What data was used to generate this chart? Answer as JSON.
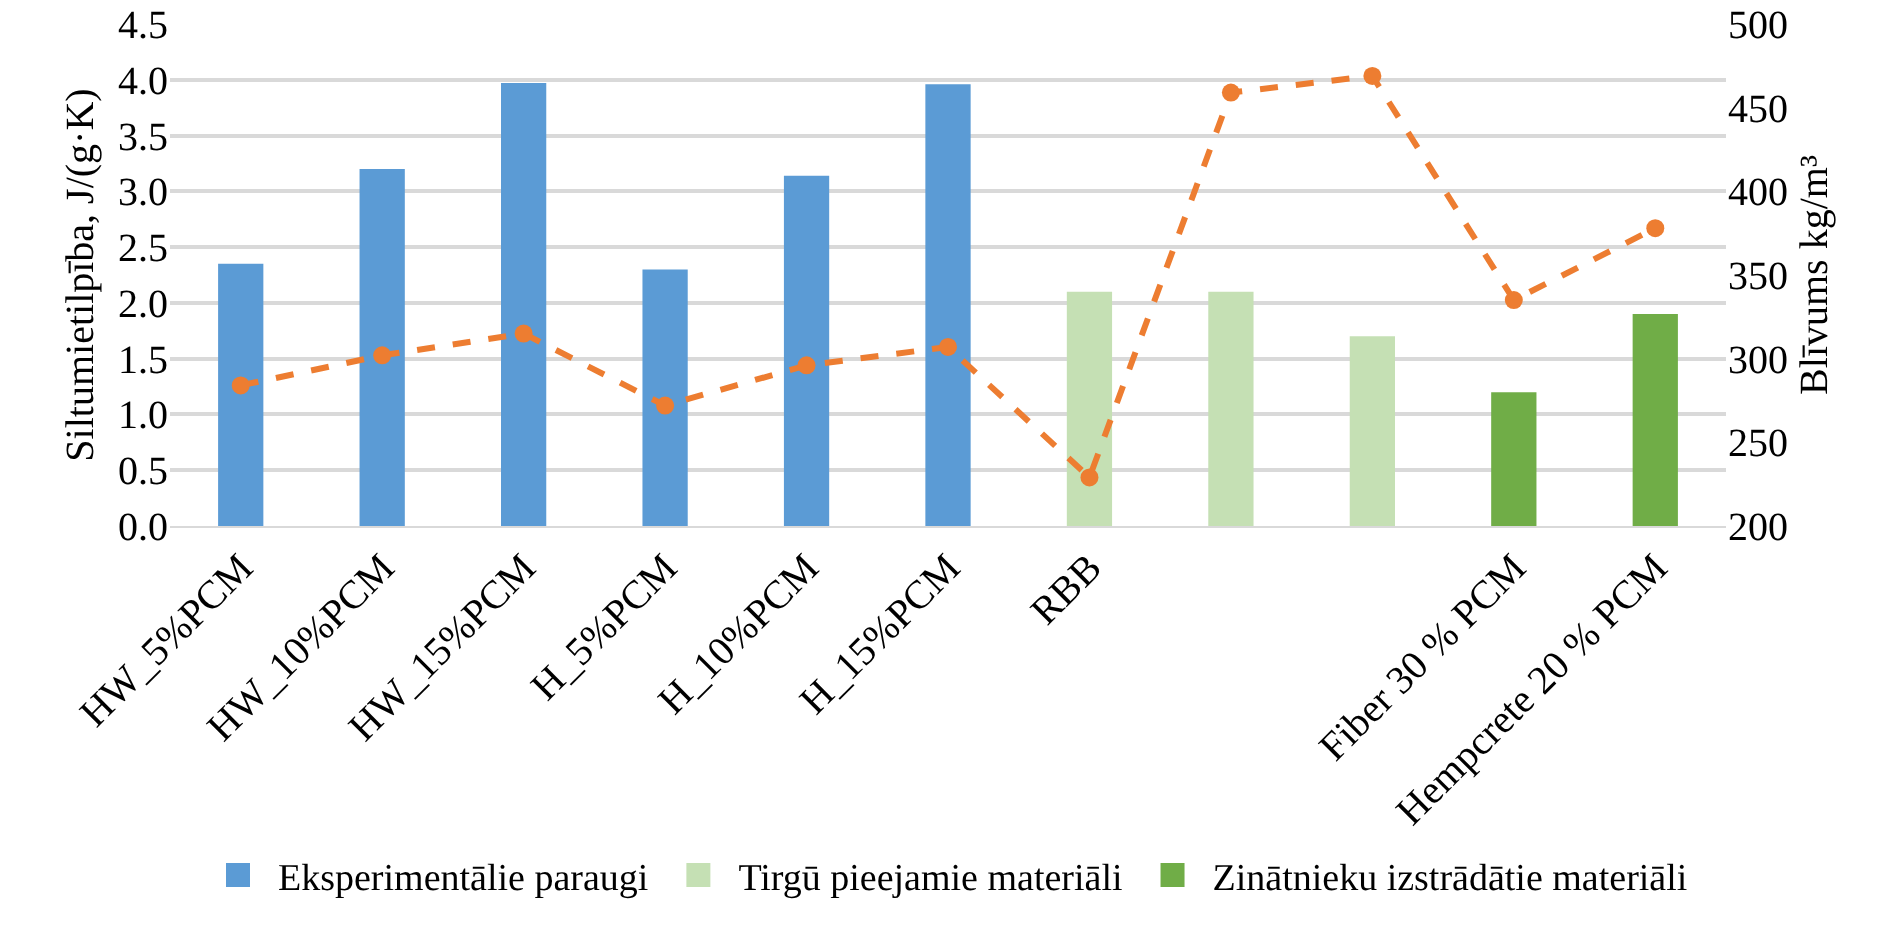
{
  "chart_data": {
    "type": "bar",
    "ylabel": "Siltumietilpība, J/(g·K)",
    "y2label": "Blīvums kg/m³",
    "categories": [
      "HW_5%PCM",
      "HW_10%PCM",
      "HW_15%PCM",
      "H_5%PCM",
      "H_10%PCM",
      "H_15%PCM",
      "RBB",
      null,
      null,
      "Fiber 30 % PCM",
      "Hempcrete 20 % PCM"
    ],
    "series": [
      {
        "name": "Eksperimentālie paraugi",
        "color": "#5b9bd5",
        "values": [
          2.35,
          3.2,
          3.97,
          2.3,
          3.14,
          3.96,
          null,
          null,
          null,
          null,
          null
        ]
      },
      {
        "name": "Tirgū pieejamie materiāli",
        "color": "#c5e0b4",
        "values": [
          null,
          null,
          null,
          null,
          null,
          null,
          2.1,
          2.1,
          1.7,
          null,
          null
        ]
      },
      {
        "name": "Zinātnieku izstrādātie materiāli",
        "color": "#70ad47",
        "values": [
          null,
          null,
          null,
          null,
          null,
          null,
          null,
          null,
          null,
          1.2,
          1.9
        ]
      },
      {
        "type": "line",
        "axis": "y2",
        "color": "#ed7d31",
        "marker": "circle",
        "line_style": "dashed",
        "values": [
          284,
          302,
          315,
          272,
          296,
          307,
          229,
          459,
          469,
          335,
          378
        ]
      }
    ],
    "ylim": [
      0,
      4.5
    ],
    "yticks": [
      {
        "value": 0,
        "label": "0.0"
      },
      0.5,
      {
        "value": 1,
        "label": "1.0"
      },
      1.5,
      {
        "value": 2,
        "label": "2.0"
      },
      2.5,
      {
        "value": 3,
        "label": "3.0"
      },
      3.5,
      {
        "value": 4,
        "label": "4.0"
      },
      4.5
    ],
    "y2lim": [
      200,
      500
    ],
    "y2ticks": [
      200,
      250,
      300,
      350,
      400,
      450,
      500
    ],
    "grid": "y",
    "legend": "bottom"
  }
}
